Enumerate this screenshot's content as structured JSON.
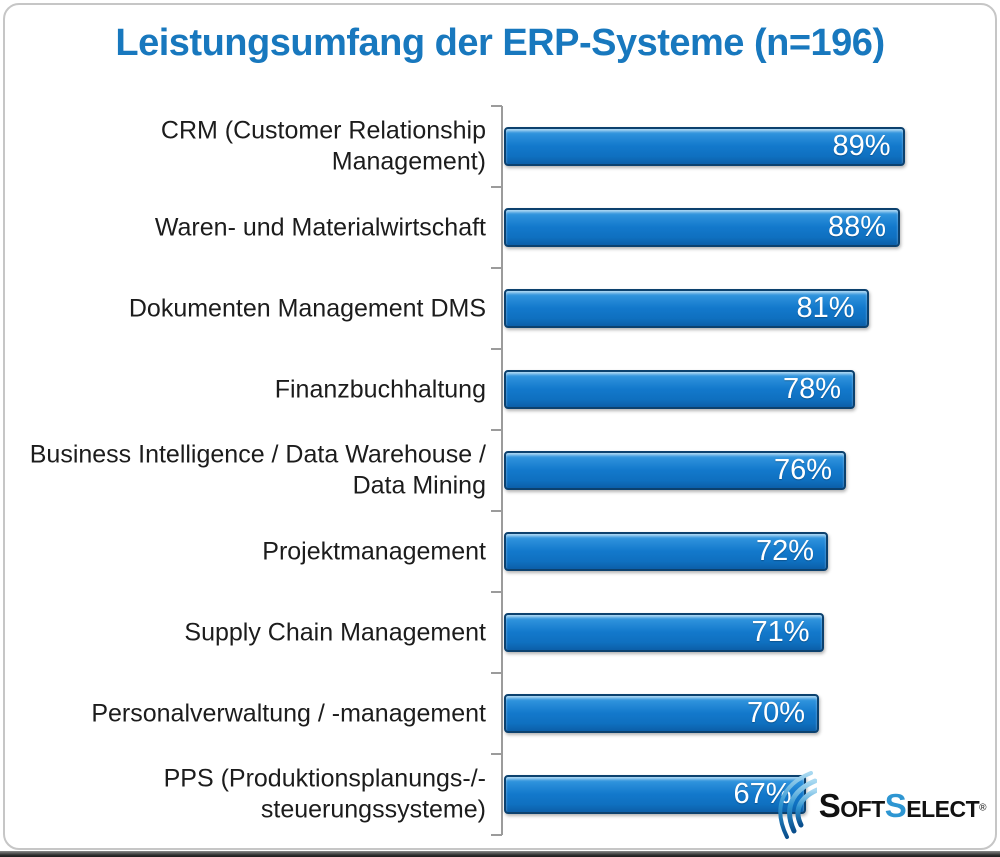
{
  "title": "Leistungsumfang der ERP-Systeme (n=196)",
  "chart_data": {
    "type": "bar",
    "orientation": "horizontal",
    "title": "Leistungsumfang der ERP-Systeme (n=196)",
    "sample_size_note": "n=196",
    "categories": [
      "CRM (Customer Relationship Management)",
      "Waren- und Materialwirtschaft",
      "Dokumenten Management DMS",
      "Finanzbuchhaltung",
      "Business Intelligence / Data Warehouse / Data Mining",
      "Projektmanagement",
      "Supply Chain Management",
      "Personalverwaltung / -management",
      "PPS (Produktionsplanungs-/-steuerungssysteme)"
    ],
    "category_lines": [
      [
        "CRM (Customer Relationship",
        "Management)"
      ],
      [
        "Waren- und Materialwirtschaft"
      ],
      [
        "Dokumenten Management DMS"
      ],
      [
        "Finanzbuchhaltung"
      ],
      [
        "Business Intelligence / Data Warehouse /",
        "Data Mining"
      ],
      [
        "Projektmanagement"
      ],
      [
        "Supply Chain Management"
      ],
      [
        "Personalverwaltung / -management"
      ],
      [
        "PPS (Produktionsplanungs-/-",
        "steuerungssysteme)"
      ]
    ],
    "values": [
      89,
      88,
      81,
      78,
      76,
      72,
      71,
      70,
      67
    ],
    "value_suffix": "%",
    "value_labels": [
      "89%",
      "88%",
      "81%",
      "78%",
      "76%",
      "72%",
      "71%",
      "70%",
      "67%"
    ],
    "value_labels_position": "inside-end",
    "xlim": [
      0,
      100
    ],
    "grid": false,
    "legend": "none"
  },
  "colors": {
    "title_blue": "#1878be",
    "bar_fill": "#1379cc",
    "bar_border": "#0c416e",
    "label_text": "#1c1c1c",
    "value_text": "#ffffff",
    "axis_gray": "#9b9b9b",
    "frame_border": "#c6c6c6",
    "logo_blue": "#2e96d2"
  },
  "logo": {
    "name": "SoftSelect",
    "s1": "S",
    "part1": "OFT",
    "s2": "S",
    "part2": "ELECT",
    "registered": "®"
  }
}
